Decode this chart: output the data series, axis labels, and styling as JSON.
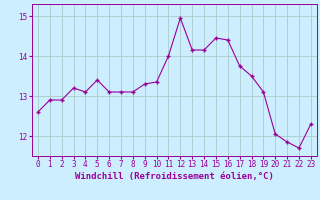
{
  "x": [
    0,
    1,
    2,
    3,
    4,
    5,
    6,
    7,
    8,
    9,
    10,
    11,
    12,
    13,
    14,
    15,
    16,
    17,
    18,
    19,
    20,
    21,
    22,
    23
  ],
  "y": [
    12.6,
    12.9,
    12.9,
    13.2,
    13.1,
    13.4,
    13.1,
    13.1,
    13.1,
    13.3,
    13.35,
    14.0,
    14.95,
    14.15,
    14.15,
    14.45,
    14.4,
    13.75,
    13.5,
    13.1,
    12.05,
    11.85,
    11.7,
    12.3
  ],
  "line_color": "#990099",
  "marker": "+",
  "background_color": "#cceeff",
  "grid_color": "#aacccc",
  "xlabel": "Windchill (Refroidissement éolien,°C)",
  "ylim": [
    11.5,
    15.3
  ],
  "xlim": [
    -0.5,
    23.5
  ],
  "yticks": [
    12,
    13,
    14,
    15
  ],
  "xticks": [
    0,
    1,
    2,
    3,
    4,
    5,
    6,
    7,
    8,
    9,
    10,
    11,
    12,
    13,
    14,
    15,
    16,
    17,
    18,
    19,
    20,
    21,
    22,
    23
  ],
  "xlabel_color": "#990099",
  "tick_color": "#990099",
  "axis_label_fontsize": 6.5,
  "tick_fontsize": 5.5
}
